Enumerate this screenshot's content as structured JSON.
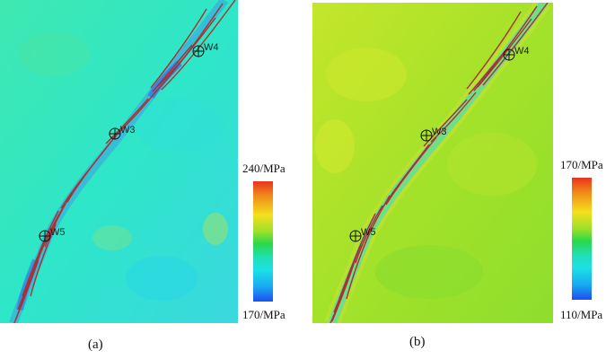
{
  "panel_a": {
    "caption": "(a)",
    "colorbar": {
      "max_label": "240/MPa",
      "min_label": "170/MPa"
    },
    "background_color": "#2ee6c0",
    "wells": [
      "W4",
      "W3",
      "W5"
    ]
  },
  "panel_b": {
    "caption": "(b)",
    "colorbar": {
      "max_label": "170/MPa",
      "min_label": "110/MPa"
    },
    "background_color": "#9ee22a",
    "wells": [
      "W4",
      "W3",
      "W5"
    ]
  },
  "colors": {
    "fault_line": "#a83232",
    "low_stress_band_a": "#3f8ee8",
    "low_stress_band_b": "#2ad8cc",
    "well_marker": "#111111"
  }
}
